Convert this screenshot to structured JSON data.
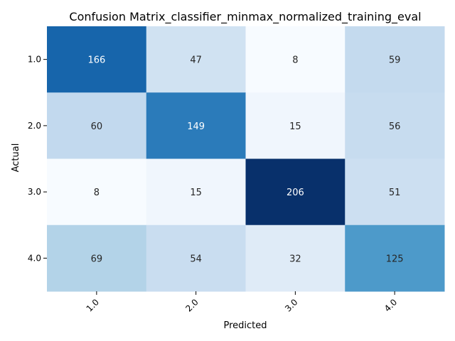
{
  "chart_data": {
    "type": "heatmap",
    "title": "Confusion Matrix_classifier_minmax_normalized_training_eval",
    "xlabel": "Predicted",
    "ylabel": "Actual",
    "x_categories": [
      "1.0",
      "2.0",
      "3.0",
      "4.0"
    ],
    "y_categories": [
      "1.0",
      "2.0",
      "3.0",
      "4.0"
    ],
    "values": [
      [
        166,
        47,
        8,
        59
      ],
      [
        60,
        149,
        15,
        56
      ],
      [
        8,
        15,
        206,
        51
      ],
      [
        69,
        54,
        32,
        125
      ]
    ],
    "colormap": "Blues",
    "color_range": [
      8,
      206
    ],
    "grid": false,
    "colorbar": false
  }
}
